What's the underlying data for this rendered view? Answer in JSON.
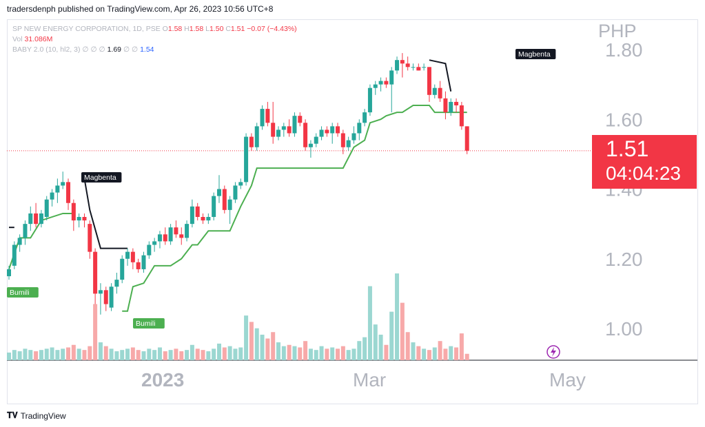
{
  "credit": "tradersdenph published on TradingView.com, Apr 26, 2023 10:56 UTC+8",
  "legend": {
    "symbol": "SP NEW ENERGY CORPORATION, 1D, PSE",
    "o_label": "O",
    "o": "1.58",
    "h_label": "H",
    "h": "1.58",
    "l_label": "L",
    "l": "1.50",
    "c_label": "C",
    "c": "1.51",
    "change": "−0.07 (−4.43%)",
    "vol_label": "Vol",
    "vol": "31.086M",
    "indicator": "BABY 2.0 (10, hl2, 3)",
    "ind_empty": "∅ ∅ ∅",
    "ind_v1": "1.69",
    "ind_empty2": "∅ ∅",
    "ind_v2": "1.54"
  },
  "currency": "PHP",
  "last_price": "1.51",
  "countdown": "04:04:23",
  "footer_brand": "TradingView",
  "colors": {
    "up": "#26a69a",
    "down": "#f23645",
    "up_vol": "#9bd7d1",
    "down_vol": "#f7a9a9",
    "trail": "#4caf50",
    "resist": "#131722"
  },
  "chart_data": {
    "type": "candlestick",
    "ylim": [
      0.91,
      1.88
    ],
    "y_ticks": [
      1.0,
      1.2,
      1.4,
      1.6,
      1.8
    ],
    "y_tick_labels": [
      "1.00",
      "1.20",
      "1.40",
      "1.60",
      "1.80"
    ],
    "x_labels": [
      "2023",
      "Mar",
      "May"
    ],
    "last_price_line": 1.51,
    "candles": [
      [
        1.15,
        1.18,
        1.14,
        1.17
      ],
      [
        1.18,
        1.25,
        1.17,
        1.24
      ],
      [
        1.24,
        1.27,
        1.22,
        1.26
      ],
      [
        1.26,
        1.31,
        1.24,
        1.3
      ],
      [
        1.3,
        1.35,
        1.28,
        1.33
      ],
      [
        1.33,
        1.36,
        1.29,
        1.3
      ],
      [
        1.3,
        1.34,
        1.29,
        1.33
      ],
      [
        1.32,
        1.38,
        1.31,
        1.37
      ],
      [
        1.37,
        1.4,
        1.35,
        1.39
      ],
      [
        1.39,
        1.43,
        1.36,
        1.41
      ],
      [
        1.41,
        1.45,
        1.4,
        1.42
      ],
      [
        1.42,
        1.43,
        1.34,
        1.36
      ],
      [
        1.36,
        1.37,
        1.28,
        1.31
      ],
      [
        1.31,
        1.33,
        1.29,
        1.32
      ],
      [
        1.32,
        1.33,
        1.29,
        1.31
      ],
      [
        1.3,
        1.31,
        1.2,
        1.22
      ],
      [
        1.22,
        1.23,
        1.07,
        1.1
      ],
      [
        1.1,
        1.13,
        1.04,
        1.11
      ],
      [
        1.11,
        1.12,
        1.05,
        1.07
      ],
      [
        1.06,
        1.13,
        1.05,
        1.12
      ],
      [
        1.12,
        1.16,
        1.1,
        1.14
      ],
      [
        1.14,
        1.21,
        1.13,
        1.2
      ],
      [
        1.2,
        1.23,
        1.18,
        1.22
      ],
      [
        1.22,
        1.23,
        1.17,
        1.19
      ],
      [
        1.19,
        1.2,
        1.16,
        1.17
      ],
      [
        1.17,
        1.22,
        1.16,
        1.21
      ],
      [
        1.21,
        1.25,
        1.2,
        1.24
      ],
      [
        1.24,
        1.26,
        1.22,
        1.25
      ],
      [
        1.25,
        1.28,
        1.23,
        1.27
      ],
      [
        1.27,
        1.29,
        1.24,
        1.25
      ],
      [
        1.25,
        1.3,
        1.24,
        1.29
      ],
      [
        1.29,
        1.31,
        1.26,
        1.27
      ],
      [
        1.27,
        1.29,
        1.24,
        1.26
      ],
      [
        1.26,
        1.31,
        1.25,
        1.3
      ],
      [
        1.3,
        1.37,
        1.29,
        1.35
      ],
      [
        1.35,
        1.36,
        1.31,
        1.32
      ],
      [
        1.32,
        1.33,
        1.3,
        1.31
      ],
      [
        1.31,
        1.33,
        1.3,
        1.32
      ],
      [
        1.32,
        1.39,
        1.31,
        1.38
      ],
      [
        1.38,
        1.44,
        1.36,
        1.4
      ],
      [
        1.4,
        1.41,
        1.33,
        1.34
      ],
      [
        1.34,
        1.38,
        1.3,
        1.37
      ],
      [
        1.37,
        1.42,
        1.36,
        1.41
      ],
      [
        1.41,
        1.43,
        1.4,
        1.42
      ],
      [
        1.42,
        1.56,
        1.41,
        1.55
      ],
      [
        1.55,
        1.56,
        1.51,
        1.52
      ],
      [
        1.52,
        1.59,
        1.51,
        1.58
      ],
      [
        1.58,
        1.64,
        1.57,
        1.63
      ],
      [
        1.63,
        1.65,
        1.58,
        1.59
      ],
      [
        1.59,
        1.65,
        1.53,
        1.55
      ],
      [
        1.55,
        1.58,
        1.54,
        1.57
      ],
      [
        1.57,
        1.59,
        1.55,
        1.58
      ],
      [
        1.58,
        1.6,
        1.55,
        1.56
      ],
      [
        1.56,
        1.62,
        1.55,
        1.61
      ],
      [
        1.61,
        1.62,
        1.58,
        1.59
      ],
      [
        1.59,
        1.6,
        1.51,
        1.52
      ],
      [
        1.52,
        1.54,
        1.49,
        1.53
      ],
      [
        1.53,
        1.56,
        1.52,
        1.55
      ],
      [
        1.55,
        1.58,
        1.54,
        1.57
      ],
      [
        1.57,
        1.58,
        1.55,
        1.56
      ],
      [
        1.56,
        1.59,
        1.53,
        1.58
      ],
      [
        1.58,
        1.59,
        1.55,
        1.56
      ],
      [
        1.56,
        1.57,
        1.5,
        1.52
      ],
      [
        1.52,
        1.55,
        1.51,
        1.54
      ],
      [
        1.54,
        1.58,
        1.53,
        1.56
      ],
      [
        1.56,
        1.6,
        1.54,
        1.59
      ],
      [
        1.59,
        1.63,
        1.58,
        1.62
      ],
      [
        1.62,
        1.7,
        1.61,
        1.69
      ],
      [
        1.69,
        1.71,
        1.67,
        1.7
      ],
      [
        1.7,
        1.72,
        1.68,
        1.71
      ],
      [
        1.71,
        1.72,
        1.69,
        1.7
      ],
      [
        1.7,
        1.75,
        1.62,
        1.74
      ],
      [
        1.74,
        1.78,
        1.73,
        1.77
      ],
      [
        1.77,
        1.79,
        1.72,
        1.76
      ],
      [
        1.76,
        1.78,
        1.74,
        1.75
      ],
      [
        1.75,
        1.76,
        1.74,
        1.75
      ],
      [
        1.75,
        1.76,
        1.74,
        1.74
      ],
      [
        1.75,
        1.76,
        1.74,
        1.75
      ],
      [
        1.75,
        1.75,
        1.65,
        1.67
      ],
      [
        1.67,
        1.7,
        1.66,
        1.69
      ],
      [
        1.69,
        1.71,
        1.65,
        1.66
      ],
      [
        1.66,
        1.68,
        1.6,
        1.62
      ],
      [
        1.62,
        1.66,
        1.61,
        1.65
      ],
      [
        1.65,
        1.66,
        1.62,
        1.64
      ],
      [
        1.64,
        1.65,
        1.57,
        1.58
      ],
      [
        1.58,
        1.58,
        1.5,
        1.51
      ]
    ],
    "volumes": [
      6,
      8,
      7,
      9,
      8,
      7,
      8,
      9,
      10,
      8,
      9,
      10,
      12,
      9,
      8,
      11,
      44,
      14,
      11,
      9,
      7,
      8,
      9,
      10,
      8,
      7,
      9,
      8,
      10,
      7,
      8,
      9,
      7,
      8,
      12,
      9,
      8,
      7,
      9,
      13,
      10,
      11,
      9,
      10,
      35,
      30,
      25,
      20,
      17,
      22,
      14,
      11,
      12,
      11,
      10,
      15,
      9,
      8,
      11,
      9,
      10,
      9,
      11,
      8,
      9,
      15,
      18,
      58,
      28,
      20,
      12,
      38,
      68,
      45,
      22,
      14,
      11,
      9,
      8,
      10,
      15,
      9,
      11,
      10,
      21,
      5
    ],
    "trail_support": [
      [
        0,
        1.17
      ],
      [
        2,
        1.26
      ],
      [
        4,
        1.26
      ],
      [
        6,
        1.31
      ],
      [
        10,
        1.33
      ],
      [
        12,
        1.33
      ],
      [
        12,
        null
      ],
      [
        13,
        null
      ],
      [
        13,
        null
      ],
      [
        21,
        1.05
      ],
      [
        22,
        1.05
      ],
      [
        23,
        1.12
      ],
      [
        25,
        1.13
      ],
      [
        27,
        1.18
      ],
      [
        29,
        1.18
      ],
      [
        30,
        1.18
      ],
      [
        32,
        1.2
      ],
      [
        34,
        1.24
      ],
      [
        35,
        1.24
      ],
      [
        37,
        1.28
      ],
      [
        41,
        1.28
      ],
      [
        43,
        1.35
      ],
      [
        45,
        1.41
      ],
      [
        46,
        1.46
      ],
      [
        62,
        1.46
      ],
      [
        64,
        1.52
      ],
      [
        66,
        1.54
      ],
      [
        67,
        1.59
      ],
      [
        69,
        1.6
      ],
      [
        70,
        1.61
      ],
      [
        72,
        1.62
      ],
      [
        73,
        1.62
      ],
      [
        75,
        1.64
      ],
      [
        78,
        1.64
      ],
      [
        79,
        1.62
      ],
      [
        85,
        1.62
      ]
    ],
    "resist_line": [
      [
        0,
        1.29
      ],
      [
        1,
        1.29
      ],
      [
        1,
        null
      ],
      [
        14,
        1.43
      ],
      [
        15,
        1.34
      ],
      [
        17,
        1.23
      ],
      [
        22,
        1.23
      ]
    ],
    "resist_line_2": [
      [
        78,
        1.77
      ],
      [
        81,
        1.76
      ],
      [
        82,
        1.68
      ]
    ],
    "annotations": [
      {
        "label": "Magbenta",
        "type": "resist"
      },
      {
        "label": "Bumili",
        "type": "support"
      },
      {
        "label": "Bumili",
        "type": "support"
      },
      {
        "label": "Magbenta",
        "type": "resist"
      }
    ]
  }
}
